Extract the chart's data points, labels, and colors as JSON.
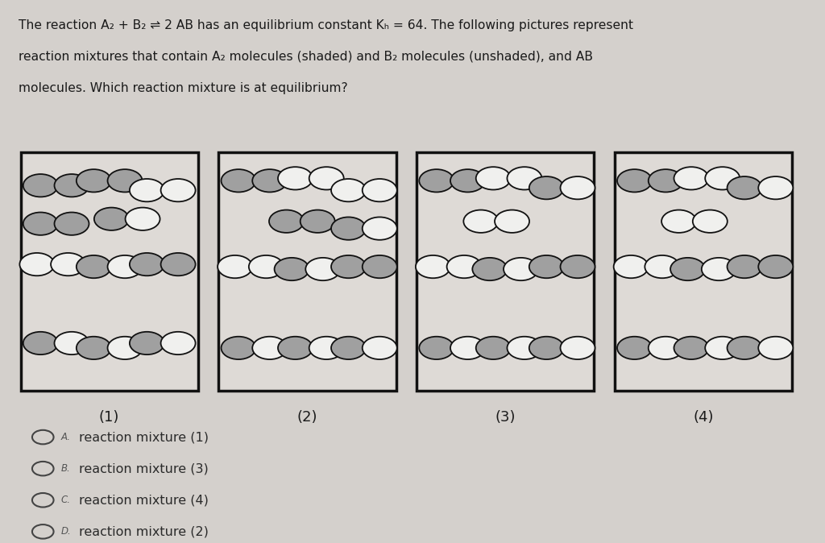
{
  "background_color": "#d4d0cc",
  "box_labels": [
    "(1)",
    "(2)",
    "(3)",
    "(4)"
  ],
  "shaded_color": "#a0a0a0",
  "unshaded_color": "#f0f0ee",
  "box_edge_color": "#111111",
  "box_face_color": "#dedad6"
}
